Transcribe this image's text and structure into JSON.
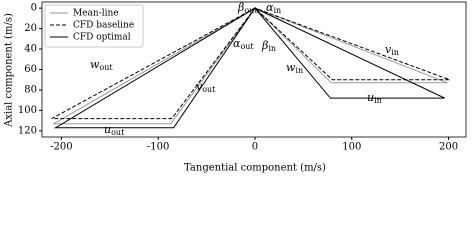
{
  "chart_data": {
    "type": "line",
    "x_label": "Tangential component (m/s)",
    "y_label": "Axial component (m/s)",
    "xlim": [
      -220,
      218
    ],
    "ylim": [
      -6,
      126
    ],
    "invert_y": true,
    "xticks": [
      -200,
      -100,
      0,
      100,
      200
    ],
    "yticks": [
      0,
      20,
      40,
      60,
      80,
      100,
      120
    ],
    "legend": "upper left",
    "series": [
      {
        "name": "Mean-line",
        "color": "#999999",
        "dash": "solid",
        "x": [
          0,
          -208,
          -87,
          0,
          79,
          199,
          0
        ],
        "values": [
          0,
          113,
          113,
          0,
          73,
          73,
          0
        ]
      },
      {
        "name": "CFD baseline",
        "color": "#000000",
        "dash": "dashed",
        "x": [
          0,
          -210,
          -86,
          0,
          80,
          201,
          0
        ],
        "values": [
          0,
          108,
          108,
          0,
          70,
          70,
          0
        ]
      },
      {
        "name": "CFD optimal",
        "color": "#000000",
        "dash": "solid",
        "x": [
          0,
          -206,
          -84,
          0,
          78,
          196,
          0
        ],
        "values": [
          0,
          117,
          117,
          0,
          88,
          88,
          0
        ]
      }
    ],
    "annotations": [
      {
        "text": "β",
        "sub": "out"
      },
      {
        "text": "α",
        "sub": "in"
      },
      {
        "text": "α",
        "sub": "out"
      },
      {
        "text": "β",
        "sub": "in"
      },
      {
        "text": "w",
        "sub": "out"
      },
      {
        "text": "v",
        "sub": "out"
      },
      {
        "text": "u",
        "sub": "out"
      },
      {
        "text": "w",
        "sub": "in"
      },
      {
        "text": "v",
        "sub": "in"
      },
      {
        "text": "u",
        "sub": "in"
      }
    ]
  }
}
